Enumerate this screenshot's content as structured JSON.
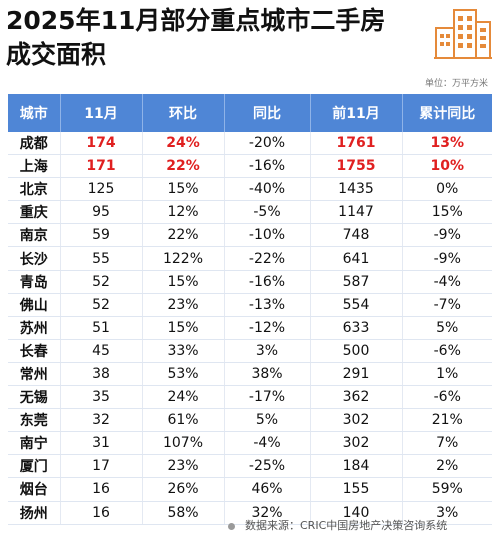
{
  "title": {
    "line1": "2025年11月部分重点城市二手房",
    "line2": "成交面积"
  },
  "unit_label": "单位：万平方米",
  "table": {
    "headers": [
      "城市",
      "11月",
      "环比",
      "同比",
      "前11月",
      "累计同比"
    ],
    "rows": [
      [
        "成都",
        "174",
        "24%",
        "-20%",
        "1761",
        "13%"
      ],
      [
        "上海",
        "171",
        "22%",
        "-16%",
        "1755",
        "10%"
      ],
      [
        "北京",
        "125",
        "15%",
        "-40%",
        "1435",
        "0%"
      ],
      [
        "重庆",
        "95",
        "12%",
        "-5%",
        "1147",
        "15%"
      ],
      [
        "南京",
        "59",
        "22%",
        "-10%",
        "748",
        "-9%"
      ],
      [
        "长沙",
        "55",
        "122%",
        "-22%",
        "641",
        "-9%"
      ],
      [
        "青岛",
        "52",
        "15%",
        "-16%",
        "587",
        "-4%"
      ],
      [
        "佛山",
        "52",
        "23%",
        "-13%",
        "554",
        "-7%"
      ],
      [
        "苏州",
        "51",
        "15%",
        "-12%",
        "633",
        "5%"
      ],
      [
        "长春",
        "45",
        "33%",
        "3%",
        "500",
        "-6%"
      ],
      [
        "常州",
        "38",
        "53%",
        "38%",
        "291",
        "1%"
      ],
      [
        "无锡",
        "35",
        "24%",
        "-17%",
        "362",
        "-6%"
      ],
      [
        "东莞",
        "32",
        "61%",
        "5%",
        "302",
        "21%"
      ],
      [
        "南宁",
        "31",
        "107%",
        "-4%",
        "302",
        "7%"
      ],
      [
        "厦门",
        "17",
        "23%",
        "-25%",
        "184",
        "2%"
      ],
      [
        "烟台",
        "16",
        "26%",
        "46%",
        "155",
        "59%"
      ],
      [
        "扬州",
        "16",
        "58%",
        "32%",
        "140",
        "3%"
      ]
    ],
    "highlight_rows": [
      0,
      1
    ],
    "highlight_cols": [
      1,
      2,
      4,
      5
    ],
    "highlight_color": "#e02020",
    "header_color": "#4f86d6"
  },
  "source": "数据来源：CRIC中国房地产决策咨询系统",
  "logo_icon": "buildings-icon"
}
